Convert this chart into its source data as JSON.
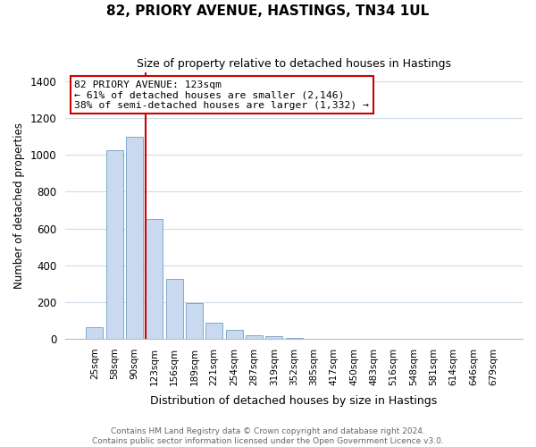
{
  "title": "82, PRIORY AVENUE, HASTINGS, TN34 1UL",
  "subtitle": "Size of property relative to detached houses in Hastings",
  "xlabel": "Distribution of detached houses by size in Hastings",
  "ylabel": "Number of detached properties",
  "bar_labels": [
    "25sqm",
    "58sqm",
    "90sqm",
    "123sqm",
    "156sqm",
    "189sqm",
    "221sqm",
    "254sqm",
    "287sqm",
    "319sqm",
    "352sqm",
    "385sqm",
    "417sqm",
    "450sqm",
    "483sqm",
    "516sqm",
    "548sqm",
    "581sqm",
    "614sqm",
    "646sqm",
    "679sqm"
  ],
  "bar_heights": [
    65,
    1025,
    1100,
    650,
    325,
    193,
    90,
    50,
    22,
    13,
    5,
    2,
    0,
    0,
    0,
    0,
    0,
    0,
    0,
    0,
    0
  ],
  "bar_color": "#c8d9f0",
  "bar_edge_color": "#7fa8d0",
  "vline_color": "#cc0000",
  "annotation_title": "82 PRIORY AVENUE: 123sqm",
  "annotation_line1": "← 61% of detached houses are smaller (2,146)",
  "annotation_line2": "38% of semi-detached houses are larger (1,332) →",
  "annotation_box_color": "#ffffff",
  "annotation_box_edge": "#cc0000",
  "ylim": [
    0,
    1450
  ],
  "yticks": [
    0,
    200,
    400,
    600,
    800,
    1000,
    1200,
    1400
  ],
  "grid_color": "#d0dce8",
  "footer_line1": "Contains HM Land Registry data © Crown copyright and database right 2024.",
  "footer_line2": "Contains public sector information licensed under the Open Government Licence v3.0.",
  "bg_color": "#ffffff",
  "fig_width": 6.0,
  "fig_height": 5.0
}
